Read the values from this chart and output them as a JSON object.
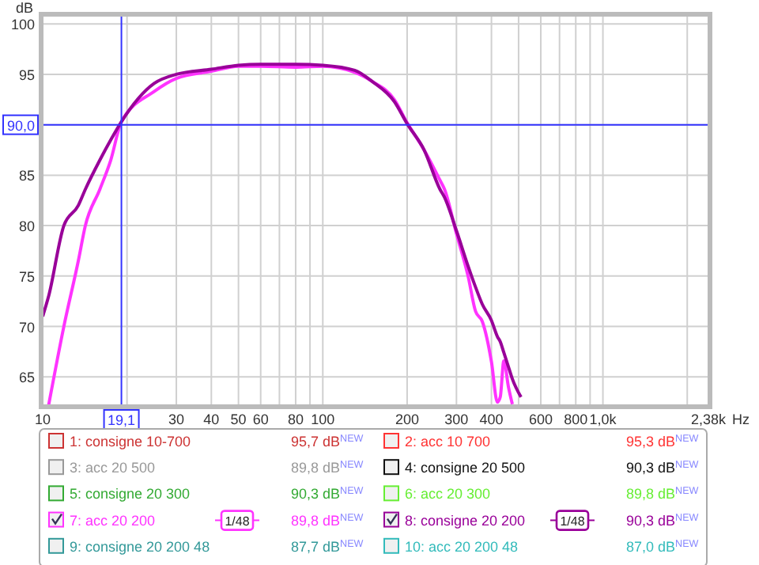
{
  "chart_data": {
    "type": "line",
    "ylabel": "dB",
    "xlabel": "Hz",
    "log": "x",
    "grid": true,
    "legend": "bottom",
    "marker": "none",
    "line_style": "solid",
    "xlim": [
      10,
      2380
    ],
    "ylim": [
      62.2,
      100.8
    ],
    "xticks": [
      10,
      {
        "value": 20,
        "label": null
      },
      30,
      40,
      50,
      60,
      {
        "value": 70,
        "label": null
      },
      80,
      {
        "value": 90,
        "label": null
      },
      100,
      200,
      300,
      400,
      {
        "value": 500,
        "label": null
      },
      600,
      {
        "value": 700,
        "label": null
      },
      800,
      {
        "value": 900,
        "label": null
      },
      {
        "value": 1000,
        "label": "1,0k"
      },
      {
        "value": 2000,
        "label": null
      },
      {
        "value": 2380,
        "label": "2,38k"
      }
    ],
    "yticks": [
      65,
      70,
      75,
      80,
      85,
      {
        "value": 90,
        "label": null
      },
      95,
      100
    ],
    "ref_lines": [
      {
        "axis": "x",
        "value": 19.1,
        "label": "19,1",
        "color": "#3333ff"
      },
      {
        "axis": "y",
        "value": 90,
        "label": "90,0",
        "color": "#3333ff"
      }
    ],
    "x": [
      10,
      10.5,
      11.9,
      13.4,
      14.2,
      16,
      17.5,
      19.1,
      25,
      30,
      40,
      50,
      60,
      80,
      100,
      130,
      150,
      180,
      200,
      230,
      262,
      272,
      300,
      330,
      351,
      371,
      400,
      420,
      430,
      443,
      460,
      475,
      510
    ],
    "series": [
      {
        "name": "1: consigne 10-700",
        "color": "#cc3333",
        "values": [
          null,
          null,
          null,
          null,
          null,
          null,
          null,
          null,
          null,
          null,
          null,
          null,
          null,
          null,
          null,
          null,
          null,
          null,
          null,
          null,
          null,
          null,
          null,
          null,
          null,
          null,
          null,
          null,
          null,
          null,
          null,
          null,
          null
        ]
      },
      {
        "name": "2: acc 10 700",
        "color": "#ff3333",
        "values": [
          null,
          null,
          null,
          null,
          null,
          null,
          null,
          null,
          null,
          null,
          null,
          null,
          null,
          null,
          null,
          null,
          null,
          null,
          null,
          null,
          null,
          null,
          null,
          null,
          null,
          null,
          null,
          null,
          null,
          null,
          null,
          null,
          null
        ]
      },
      {
        "name": "3: acc 20 500",
        "color": "#999999",
        "values": [
          null,
          null,
          null,
          null,
          null,
          null,
          null,
          null,
          null,
          null,
          null,
          null,
          null,
          null,
          null,
          null,
          null,
          null,
          null,
          null,
          null,
          null,
          null,
          null,
          null,
          null,
          null,
          null,
          null,
          null,
          null,
          null,
          null
        ]
      },
      {
        "name": "4: consigne 20 500",
        "color": "#111111",
        "values": [
          null,
          null,
          null,
          null,
          null,
          null,
          null,
          null,
          null,
          null,
          null,
          null,
          null,
          null,
          null,
          null,
          null,
          null,
          null,
          null,
          null,
          null,
          null,
          null,
          null,
          null,
          null,
          null,
          null,
          null,
          null,
          null,
          null
        ]
      },
      {
        "name": "5: consigne 20 300",
        "color": "#33aa33",
        "values": [
          null,
          null,
          null,
          null,
          null,
          null,
          null,
          null,
          null,
          null,
          null,
          null,
          null,
          null,
          null,
          null,
          null,
          null,
          null,
          null,
          null,
          null,
          null,
          null,
          null,
          null,
          null,
          null,
          null,
          null,
          null,
          null,
          null
        ]
      },
      {
        "name": "6: acc 20 300",
        "color": "#66ee33",
        "values": [
          null,
          null,
          null,
          null,
          null,
          null,
          null,
          null,
          null,
          null,
          null,
          null,
          null,
          null,
          null,
          null,
          null,
          null,
          null,
          null,
          null,
          null,
          null,
          null,
          null,
          null,
          null,
          null,
          null,
          null,
          null,
          null,
          null
        ]
      },
      {
        "name": "7: acc 20 200",
        "color": "#ff33ff",
        "values": [
          null,
          62.2,
          70,
          76.5,
          80,
          83.6,
          86.5,
          90.3,
          93.3,
          94.6,
          95.3,
          95.8,
          95.8,
          95.7,
          95.8,
          95.2,
          94.3,
          92.5,
          90.2,
          87.5,
          84.5,
          83.6,
          79.2,
          75,
          71.5,
          70.5,
          66.5,
          62.5,
          63,
          66.6,
          64,
          62.3,
          null
        ]
      },
      {
        "name": "8: consigne 20 200",
        "color": "#990099",
        "values": [
          71,
          73,
          80,
          82,
          83.6,
          86.5,
          88.5,
          90.3,
          94.1,
          95,
          95.5,
          95.9,
          96,
          96,
          95.9,
          95.4,
          94.3,
          92.3,
          90.1,
          87.5,
          83.6,
          82.8,
          79.5,
          76,
          73.9,
          72.2,
          70.6,
          69,
          68.5,
          67.4,
          66,
          64.8,
          63
        ]
      },
      {
        "name": "9: consigne 20 200 48",
        "color": "#339999",
        "values": [
          null,
          null,
          null,
          null,
          null,
          null,
          null,
          null,
          null,
          null,
          null,
          null,
          null,
          null,
          null,
          null,
          null,
          null,
          null,
          null,
          null,
          null,
          null,
          null,
          null,
          null,
          null,
          null,
          null,
          null,
          null,
          null,
          null
        ]
      },
      {
        "name": "10: acc 20 200 48",
        "color": "#33bbbb",
        "values": [
          null,
          null,
          null,
          null,
          null,
          null,
          null,
          null,
          null,
          null,
          null,
          null,
          null,
          null,
          null,
          null,
          null,
          null,
          null,
          null,
          null,
          null,
          null,
          null,
          null,
          null,
          null,
          null,
          null,
          null,
          null,
          null,
          null
        ]
      }
    ],
    "annotations": [
      "95,7 dB$^{NEW}$",
      "95,3 dB$^{NEW}$",
      "89,8 dB$^{NEW}$",
      "90,3 dB$^{NEW}$",
      "90,3 dB$^{NEW}$",
      "89,8 dB$^{NEW}$",
      "89,8 dB$^{NEW}$",
      "90,3 dB$^{NEW}$",
      "87,7 dB$^{NEW}$",
      "87,0 dB$^{NEW}$",
      "1/48",
      "1/48"
    ]
  }
}
